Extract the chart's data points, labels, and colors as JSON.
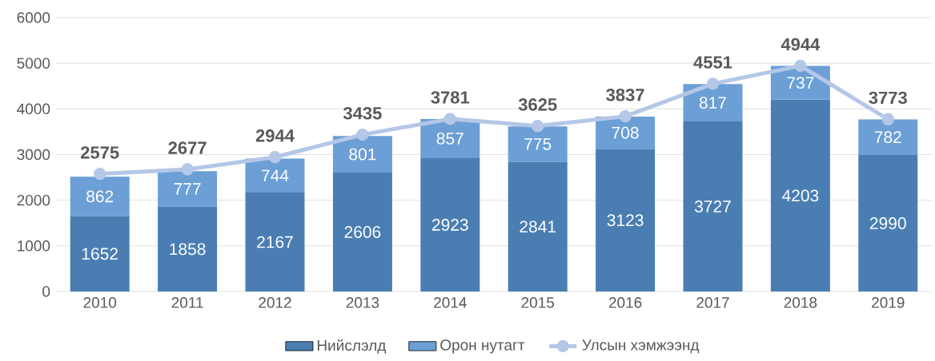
{
  "chart_data": {
    "type": "bar",
    "stacked": true,
    "data_labels": true,
    "grid": "y",
    "legend": "bottom",
    "categories": [
      "2010",
      "2011",
      "2012",
      "2013",
      "2014",
      "2015",
      "2016",
      "2017",
      "2018",
      "2019"
    ],
    "ylim": [
      0,
      6000
    ],
    "yticks": [
      0,
      1000,
      2000,
      3000,
      4000,
      5000,
      6000
    ],
    "series": [
      {
        "name": "Нийслэлд",
        "type": "bar",
        "color": "#4a7eb3",
        "values": [
          1652,
          1858,
          2167,
          2606,
          2923,
          2841,
          3123,
          3727,
          4203,
          2990
        ]
      },
      {
        "name": "Орон нутагт",
        "type": "bar",
        "color": "#6b9fd5",
        "values": [
          862,
          777,
          744,
          801,
          857,
          775,
          708,
          817,
          737,
          782
        ]
      },
      {
        "name": "Улсын хэмжээнд",
        "type": "line",
        "color": "#b4c7e7",
        "marker": "circle",
        "values": [
          2575,
          2677,
          2944,
          3435,
          3781,
          3625,
          3837,
          4551,
          4944,
          3773
        ]
      }
    ]
  }
}
